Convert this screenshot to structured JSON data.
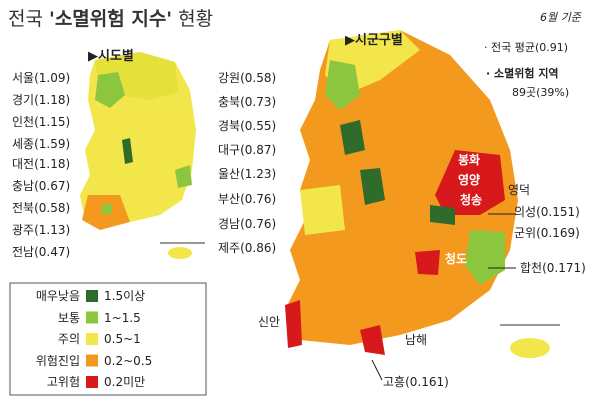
{
  "header": {
    "title_prefix": "전국 ",
    "title_bold": "'소멸위험 지수'",
    "title_suffix": " 현황",
    "date": "6월 기준"
  },
  "province_map": {
    "heading": "▶시도별",
    "labels": [
      "서울(1.09)",
      "경기(1.18)",
      "인천(1.15)",
      "세종(1.59)",
      "대전(1.18)",
      "충남(0.67)",
      "전북(0.58)",
      "광주(1.13)",
      "전남(0.47)",
      "강원(0.58)",
      "충북(0.73)",
      "경북(0.55)",
      "대구(0.87)",
      "울산(1.23)",
      "부산(0.76)",
      "경남(0.76)",
      "제주(0.86)"
    ]
  },
  "district_map": {
    "heading": "▶시군구별",
    "notes": [
      "· 전국 평균(0.91)",
      "· 소멸위험 지역",
      "89곳(39%)"
    ],
    "labels": [
      "봉화",
      "영양",
      "청송",
      "영덕",
      "의성(0.151)",
      "군위(0.169)",
      "청도",
      "합천(0.171)",
      "신안",
      "남해",
      "고흥(0.161)"
    ]
  },
  "legend": [
    {
      "label": "매우낮음",
      "range": "1.5이상",
      "color": "#2f6b2a"
    },
    {
      "label": "보통",
      "range": "1~1.5",
      "color": "#8cc63f"
    },
    {
      "label": "주의",
      "range": "0.5~1",
      "color": "#f2e64a"
    },
    {
      "label": "위험진입",
      "range": "0.2~0.5",
      "color": "#f39a1e"
    },
    {
      "label": "고위험",
      "range": "0.2미만",
      "color": "#d7191c"
    }
  ]
}
